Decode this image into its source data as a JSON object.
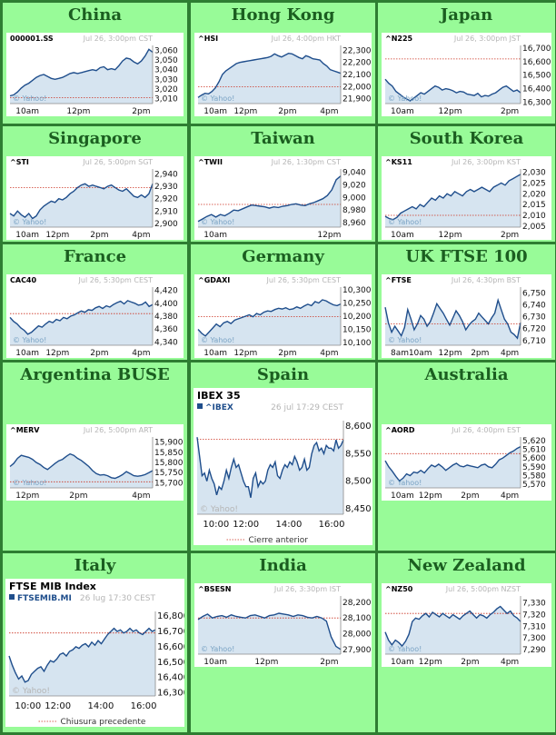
{
  "chart_data": [
    {
      "type": "area",
      "region": "China",
      "symbol": "000001.SS",
      "timestamp": "Jul 26, 3:00pm CST",
      "ylim": [
        3005,
        3065
      ],
      "y_ticks": [
        3060,
        3050,
        3040,
        3030,
        3020,
        3010
      ],
      "x_ticks": [
        "10am",
        "12pm",
        "2pm"
      ],
      "prev_close": 3011,
      "values": [
        3013,
        3014,
        3017,
        3021,
        3024,
        3026,
        3029,
        3032,
        3034,
        3035,
        3033,
        3031,
        3030,
        3031,
        3032,
        3034,
        3036,
        3037,
        3036,
        3037,
        3038,
        3039,
        3040,
        3039,
        3042,
        3043,
        3040,
        3041,
        3040,
        3044,
        3049,
        3052,
        3051,
        3048,
        3046,
        3049,
        3054,
        3061,
        3058
      ]
    },
    {
      "type": "area",
      "region": "Hong Kong",
      "symbol": "^HSI",
      "timestamp": "Jul 26, 4:00pm HKT",
      "ylim": [
        21860,
        22340
      ],
      "y_ticks": [
        22300,
        22200,
        22100,
        22000,
        21900
      ],
      "x_ticks": [
        "10am",
        "12pm",
        "2pm",
        "4pm"
      ],
      "prev_close": 21998,
      "values": [
        21910,
        21930,
        21945,
        21940,
        21960,
        21990,
        22040,
        22100,
        22130,
        22150,
        22170,
        22190,
        22200,
        22205,
        22210,
        22215,
        22220,
        22225,
        22230,
        22235,
        22240,
        22250,
        22270,
        22255,
        22245,
        22260,
        22275,
        22270,
        22255,
        22240,
        22230,
        22255,
        22245,
        22230,
        22225,
        22220,
        22190,
        22170,
        22140,
        22130,
        22120,
        22110
      ]
    },
    {
      "type": "area",
      "region": "Japan",
      "symbol": "^N225",
      "timestamp": "Jul 26, 3:00pm JST",
      "ylim": [
        16290,
        16720
      ],
      "y_ticks": [
        16700,
        16600,
        16500,
        16400,
        16300
      ],
      "x_ticks": [
        "10am",
        "12pm",
        "2pm"
      ],
      "prev_close": 16620,
      "values": [
        16470,
        16440,
        16420,
        16380,
        16360,
        16340,
        16325,
        16310,
        16330,
        16350,
        16370,
        16360,
        16380,
        16400,
        16420,
        16410,
        16390,
        16400,
        16395,
        16385,
        16370,
        16380,
        16375,
        16360,
        16355,
        16350,
        16365,
        16340,
        16350,
        16345,
        16360,
        16370,
        16390,
        16410,
        16420,
        16400,
        16380,
        16390,
        16370
      ]
    },
    {
      "type": "area",
      "region": "Singapore",
      "symbol": "^STI",
      "timestamp": "Jul 26, 5:00pm SGT",
      "ylim": [
        2897,
        2944
      ],
      "y_ticks": [
        2940,
        2930,
        2920,
        2910,
        2900
      ],
      "x_ticks": [
        "10am",
        "12pm",
        "2pm",
        "4pm"
      ],
      "prev_close": 2929,
      "values": [
        2908,
        2906,
        2910,
        2907,
        2905,
        2908,
        2904,
        2906,
        2911,
        2914,
        2916,
        2918,
        2917,
        2920,
        2919,
        2921,
        2924,
        2926,
        2929,
        2931,
        2932,
        2930,
        2931,
        2930,
        2929,
        2928,
        2930,
        2931,
        2929,
        2927,
        2926,
        2928,
        2925,
        2922,
        2921,
        2923,
        2921,
        2924,
        2932
      ]
    },
    {
      "type": "area",
      "region": "Taiwan",
      "symbol": "^TWII",
      "timestamp": "Jul 26, 1:30pm CST",
      "ylim": [
        8953,
        9045
      ],
      "y_ticks": [
        9040,
        9020,
        9000,
        8980,
        8960
      ],
      "x_ticks": [
        "10am",
        "12pm"
      ],
      "prev_close": 8989,
      "values": [
        8962,
        8966,
        8970,
        8973,
        8969,
        8973,
        8971,
        8975,
        8980,
        8979,
        8982,
        8985,
        8988,
        8987,
        8986,
        8985,
        8983,
        8985,
        8984,
        8986,
        8987,
        8989,
        8990,
        8988,
        8987,
        8990,
        8992,
        8995,
        8998,
        9003,
        9012,
        9028,
        9034
      ]
    },
    {
      "type": "area",
      "region": "South Korea",
      "symbol": "^KS11",
      "timestamp": "Jul 26, 3:00pm KST",
      "ylim": [
        2004.5,
        2031.5
      ],
      "y_ticks": [
        2030,
        2025,
        2020,
        2015,
        2010,
        2005
      ],
      "x_ticks": [
        "10am",
        "12pm",
        "2pm"
      ],
      "prev_close": 2010,
      "values": [
        2009.5,
        2008.5,
        2008,
        2009,
        2011,
        2012,
        2013,
        2014,
        2013,
        2015,
        2014,
        2016,
        2018,
        2017,
        2019,
        2018,
        2020,
        2019,
        2021,
        2020,
        2019,
        2021,
        2022,
        2021,
        2022,
        2023,
        2022,
        2021,
        2023,
        2024,
        2025,
        2024,
        2026,
        2027,
        2028,
        2029
      ]
    },
    {
      "type": "area",
      "region": "France",
      "symbol": "CAC40",
      "timestamp": "Jul 26, 5:30pm CEST",
      "ylim": [
        4335,
        4425
      ],
      "y_ticks": [
        4420,
        4400,
        4380,
        4360,
        4340
      ],
      "x_ticks": [
        "10am",
        "12pm",
        "2pm",
        "4pm"
      ],
      "prev_close": 4384,
      "values": [
        4378,
        4372,
        4368,
        4362,
        4358,
        4352,
        4355,
        4360,
        4365,
        4363,
        4368,
        4372,
        4370,
        4375,
        4373,
        4378,
        4376,
        4380,
        4382,
        4385,
        4388,
        4386,
        4390,
        4389,
        4393,
        4395,
        4392,
        4396,
        4394,
        4398,
        4401,
        4403,
        4399,
        4404,
        4402,
        4400,
        4397,
        4398,
        4402,
        4395,
        4398
      ]
    },
    {
      "type": "area",
      "region": "Germany",
      "symbol": "^GDAXI",
      "timestamp": "Jul 26, 5:30pm CEST",
      "ylim": [
        10090,
        10310
      ],
      "y_ticks": [
        10300,
        10250,
        10200,
        10150,
        10100
      ],
      "x_ticks": [
        "10am",
        "12pm",
        "2pm",
        "4pm"
      ],
      "prev_close": 10198,
      "values": [
        10150,
        10135,
        10125,
        10140,
        10155,
        10170,
        10160,
        10175,
        10180,
        10172,
        10185,
        10190,
        10195,
        10200,
        10205,
        10198,
        10210,
        10205,
        10215,
        10220,
        10218,
        10225,
        10230,
        10227,
        10232,
        10225,
        10228,
        10235,
        10230,
        10238,
        10245,
        10240,
        10255,
        10250,
        10262,
        10258,
        10250,
        10243,
        10240,
        10246
      ]
    },
    {
      "type": "area",
      "region": "UK FTSE 100",
      "symbol": "^FTSE",
      "timestamp": "Jul 26, 4:30pm BST",
      "ylim": [
        6706,
        6755
      ],
      "y_ticks": [
        6750,
        6740,
        6730,
        6720,
        6710
      ],
      "x_ticks": [
        "8am",
        "10am",
        "12pm",
        "2pm",
        "4pm"
      ],
      "prev_close": 6724,
      "values": [
        6738,
        6725,
        6717,
        6722,
        6718,
        6714,
        6721,
        6736,
        6728,
        6719,
        6724,
        6731,
        6728,
        6722,
        6726,
        6733,
        6741,
        6737,
        6733,
        6728,
        6723,
        6729,
        6735,
        6731,
        6726,
        6719,
        6723,
        6726,
        6728,
        6733,
        6730,
        6727,
        6724,
        6729,
        6733,
        6744,
        6736,
        6728,
        6724,
        6717,
        6715,
        6712,
        6725
      ]
    },
    {
      "type": "area",
      "region": "Argentina BUSE",
      "symbol": "^MERV",
      "timestamp": "Jul 26, 5:00pm ART",
      "ylim": [
        15675,
        15925
      ],
      "y_ticks": [
        15900,
        15850,
        15800,
        15750,
        15700
      ],
      "x_ticks": [
        "12pm",
        "2pm",
        "4pm"
      ],
      "prev_close": 15705,
      "values": [
        15780,
        15795,
        15820,
        15835,
        15830,
        15825,
        15815,
        15800,
        15790,
        15775,
        15765,
        15780,
        15795,
        15808,
        15815,
        15830,
        15842,
        15835,
        15820,
        15810,
        15795,
        15780,
        15760,
        15745,
        15738,
        15740,
        15735,
        15725,
        15722,
        15730,
        15740,
        15755,
        15745,
        15735,
        15732,
        15735,
        15740,
        15750,
        15760
      ]
    },
    {
      "type": "area",
      "region": "Spain",
      "title": "IBEX 35",
      "symbol": "^IBEX",
      "timestamp": "26 jul 17:29 CEST",
      "ylim": [
        8440,
        8610
      ],
      "y_ticks": [
        8600,
        8550,
        8500,
        8450
      ],
      "x_ticks": [
        "10:00",
        "12:00",
        "14:00",
        "16:00"
      ],
      "prev_close": 8576,
      "legend": "Cierre anterior",
      "watermark": "© Yahoo!",
      "values": [
        8580,
        8545,
        8510,
        8515,
        8500,
        8520,
        8505,
        8495,
        8475,
        8490,
        8485,
        8500,
        8520,
        8505,
        8525,
        8540,
        8525,
        8530,
        8515,
        8500,
        8490,
        8490,
        8470,
        8505,
        8515,
        8490,
        8500,
        8495,
        8500,
        8520,
        8530,
        8525,
        8535,
        8510,
        8505,
        8520,
        8530,
        8525,
        8535,
        8530,
        8545,
        8535,
        8520,
        8525,
        8540,
        8520,
        8525,
        8550,
        8565,
        8570,
        8555,
        8560,
        8550,
        8565,
        8560,
        8560,
        8555,
        8575,
        8560,
        8565,
        8575
      ]
    },
    {
      "type": "area",
      "region": "Australia",
      "symbol": "^AORD",
      "timestamp": "Jul 26, 4:00pm EST",
      "ylim": [
        5566,
        5624
      ],
      "y_ticks": [
        5620,
        5610,
        5600,
        5590,
        5580,
        5570
      ],
      "x_ticks": [
        "10am",
        "12pm",
        "2pm",
        "4pm"
      ],
      "prev_close": 5605,
      "values": [
        5597,
        5590,
        5585,
        5579,
        5574,
        5577,
        5582,
        5580,
        5584,
        5583,
        5586,
        5583,
        5588,
        5592,
        5590,
        5593,
        5590,
        5586,
        5589,
        5592,
        5594,
        5591,
        5590,
        5592,
        5591,
        5590,
        5589,
        5592,
        5593,
        5590,
        5589,
        5593,
        5598,
        5600,
        5603,
        5606,
        5608,
        5611,
        5613
      ]
    },
    {
      "type": "area",
      "region": "Italy",
      "title": "FTSE MIB Index",
      "symbol": "FTSEMIB.MI",
      "timestamp": "26 lug 17:30 CEST",
      "ylim": [
        16280,
        16830
      ],
      "y_ticks": [
        16800,
        16700,
        16600,
        16500,
        16400,
        16300
      ],
      "x_ticks": [
        "10:00",
        "12:00",
        "14:00",
        "16:00"
      ],
      "prev_close": 16690,
      "legend": "Chiusura precedente",
      "watermark": "© Yahoo!",
      "values": [
        16540,
        16480,
        16430,
        16390,
        16410,
        16370,
        16380,
        16420,
        16440,
        16460,
        16470,
        16440,
        16480,
        16510,
        16500,
        16520,
        16550,
        16560,
        16540,
        16570,
        16580,
        16600,
        16590,
        16610,
        16620,
        16600,
        16630,
        16610,
        16640,
        16620,
        16650,
        16680,
        16700,
        16720,
        16700,
        16710,
        16690,
        16700,
        16720,
        16700,
        16710,
        16690,
        16680,
        16700,
        16720,
        16700,
        16710
      ]
    },
    {
      "type": "area",
      "region": "India",
      "symbol": "^BSESN",
      "timestamp": "Jul 26, 3:30pm IST",
      "ylim": [
        27870,
        28240
      ],
      "y_ticks": [
        28200,
        28100,
        28000,
        27900
      ],
      "x_ticks": [
        "10am",
        "12pm",
        "2pm"
      ],
      "prev_close": 28100,
      "values": [
        28090,
        28110,
        28125,
        28100,
        28110,
        28115,
        28105,
        28120,
        28110,
        28105,
        28100,
        28115,
        28120,
        28110,
        28100,
        28115,
        28120,
        28130,
        28125,
        28120,
        28110,
        28120,
        28115,
        28105,
        28100,
        28110,
        28100,
        28080,
        27980,
        27920,
        27900
      ]
    },
    {
      "type": "area",
      "region": "New Zealand",
      "symbol": "^NZ50",
      "timestamp": "Jul 26, 5:00pm NZST",
      "ylim": [
        7286,
        7336
      ],
      "y_ticks": [
        7330,
        7320,
        7310,
        7300,
        7290
      ],
      "x_ticks": [
        "10am",
        "12pm",
        "2pm",
        "4pm"
      ],
      "prev_close": 7321,
      "values": [
        7305,
        7298,
        7294,
        7298,
        7296,
        7293,
        7297,
        7303,
        7314,
        7317,
        7316,
        7319,
        7321,
        7318,
        7322,
        7320,
        7318,
        7321,
        7319,
        7317,
        7320,
        7318,
        7316,
        7319,
        7321,
        7323,
        7320,
        7317,
        7320,
        7319,
        7317,
        7320,
        7322,
        7325,
        7327,
        7324,
        7321,
        7323,
        7319,
        7317,
        7314
      ]
    }
  ],
  "watermark": "© Yahoo!"
}
